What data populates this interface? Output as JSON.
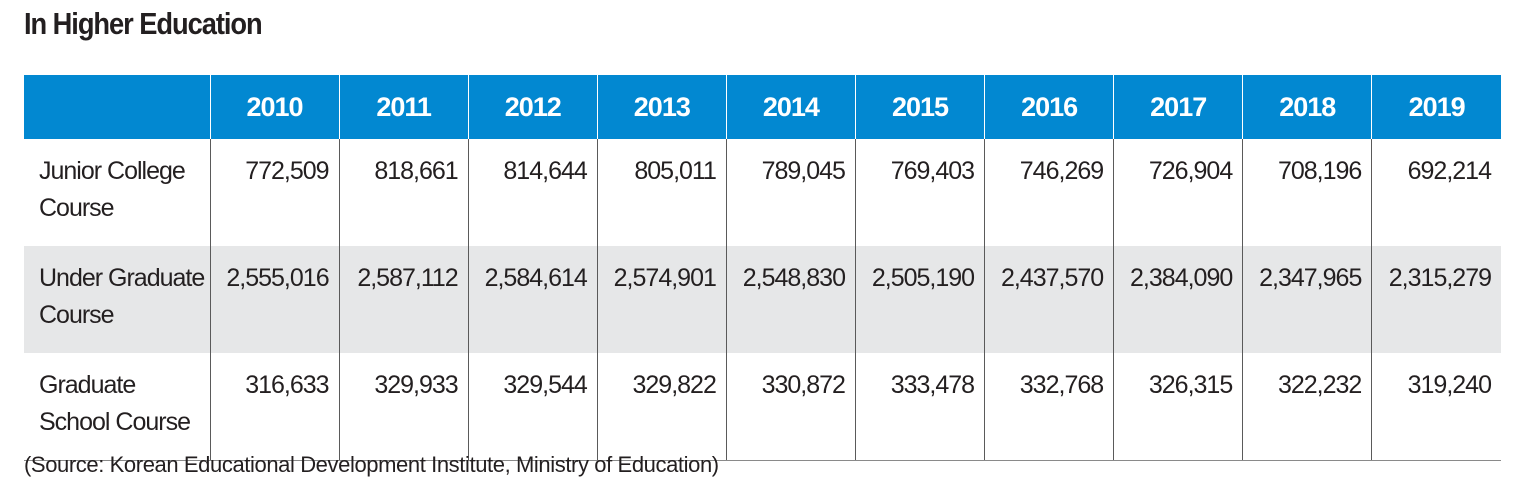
{
  "title": "In Higher Education",
  "table": {
    "header_blank": "",
    "years": [
      "2010",
      "2011",
      "2012",
      "2013",
      "2014",
      "2015",
      "2016",
      "2017",
      "2018",
      "2019"
    ],
    "rows": [
      {
        "label_line1": "Junior College",
        "label_line2": "Course",
        "values": [
          "772,509",
          "818,661",
          "814,644",
          "805,011",
          "789,045",
          "769,403",
          "746,269",
          "726,904",
          "708,196",
          "692,214"
        ]
      },
      {
        "label_line1": "Under Graduate",
        "label_line2": "Course",
        "values": [
          "2,555,016",
          "2,587,112",
          "2,584,614",
          "2,574,901",
          "2,548,830",
          "2,505,190",
          "2,437,570",
          "2,384,090",
          "2,347,965",
          "2,315,279"
        ]
      },
      {
        "label_line1": "Graduate",
        "label_line2": "School Course",
        "values": [
          "316,633",
          "329,933",
          "329,544",
          "329,822",
          "330,872",
          "333,478",
          "332,768",
          "326,315",
          "322,232",
          "319,240"
        ]
      }
    ]
  },
  "source": "(Source: Korean Educational Development Institute, Ministry of Education)",
  "colors": {
    "header_bg": "#0288d1",
    "header_text": "#ffffff",
    "shaded_row": "#e6e7e8",
    "text": "#231f20"
  }
}
